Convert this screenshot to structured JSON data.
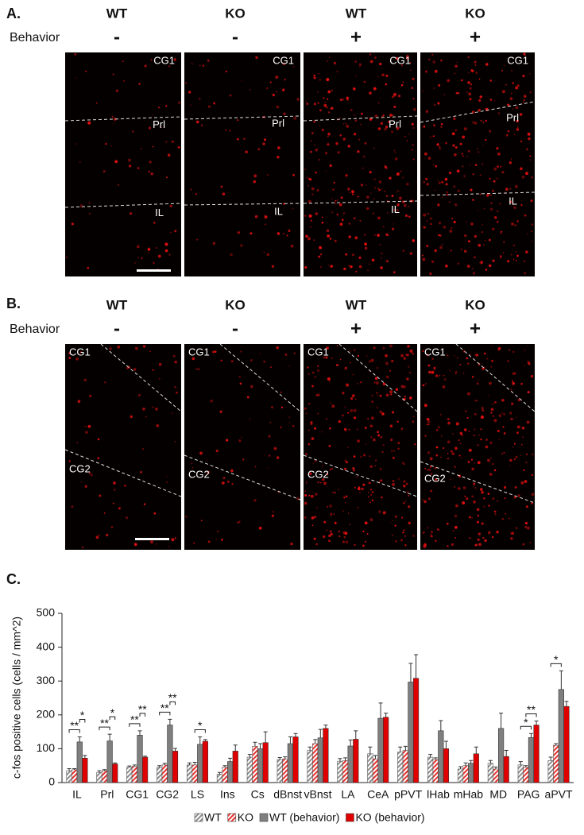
{
  "panel_a": {
    "label": "A.",
    "behavior_label": "Behavior",
    "images": [
      {
        "genotype": "WT",
        "behavior": "-",
        "regions": [
          "CG1",
          "Prl",
          "IL"
        ]
      },
      {
        "genotype": "KO",
        "behavior": "-",
        "regions": [
          "CG1",
          "Prl",
          "IL"
        ]
      },
      {
        "genotype": "WT",
        "behavior": "+",
        "regions": [
          "CG1",
          "Prl",
          "IL"
        ]
      },
      {
        "genotype": "KO",
        "behavior": "+",
        "regions": [
          "CG1",
          "Prl",
          "IL"
        ]
      }
    ]
  },
  "panel_b": {
    "label": "B.",
    "behavior_label": "Behavior",
    "images": [
      {
        "genotype": "WT",
        "behavior": "-",
        "regions": [
          "CG1",
          "CG2"
        ]
      },
      {
        "genotype": "KO",
        "behavior": "-",
        "regions": [
          "CG1",
          "CG2"
        ]
      },
      {
        "genotype": "WT",
        "behavior": "+",
        "regions": [
          "CG1",
          "CG2"
        ]
      },
      {
        "genotype": "KO",
        "behavior": "+",
        "regions": [
          "CG1",
          "CG2"
        ]
      }
    ]
  },
  "chart_data": {
    "type": "bar",
    "panel_label": "C.",
    "y_label": "c-fos positive cells (cells / mm^2)",
    "categories": [
      "IL",
      "Prl",
      "CG1",
      "CG2",
      "LS",
      "Ins",
      "Cs",
      "dBnst",
      "vBnst",
      "LA",
      "CeA",
      "pPVT",
      "lHab",
      "mHab",
      "MD",
      "PAG",
      "aPVT"
    ],
    "series": [
      {
        "name": "WT",
        "color": "#8c8c8c",
        "hatch": true,
        "values": [
          35,
          30,
          45,
          45,
          52,
          25,
          75,
          68,
          95,
          63,
          85,
          90,
          75,
          40,
          57,
          52,
          65
        ],
        "errors": [
          6,
          5,
          4,
          5,
          6,
          5,
          8,
          6,
          10,
          8,
          20,
          15,
          8,
          7,
          8,
          10,
          10
        ]
      },
      {
        "name": "KO",
        "color": "#e8322f",
        "hatch": true,
        "values": [
          38,
          35,
          48,
          52,
          52,
          45,
          107,
          70,
          115,
          65,
          70,
          95,
          68,
          50,
          40,
          45,
          110
        ],
        "errors": [
          3,
          3,
          4,
          5,
          8,
          5,
          12,
          6,
          12,
          8,
          10,
          12,
          5,
          8,
          6,
          5,
          5
        ]
      },
      {
        "name": "WT (behavior)",
        "color": "#7f7f7f",
        "hatch": false,
        "values": [
          120,
          123,
          140,
          170,
          113,
          62,
          100,
          115,
          132,
          108,
          190,
          297,
          153,
          57,
          160,
          133,
          275
        ],
        "errors": [
          15,
          20,
          13,
          17,
          22,
          10,
          15,
          20,
          25,
          18,
          45,
          55,
          30,
          8,
          45,
          12,
          55
        ]
      },
      {
        "name": "KO (behavior)",
        "color": "#e00000",
        "hatch": false,
        "values": [
          72,
          55,
          75,
          93,
          122,
          93,
          118,
          135,
          160,
          128,
          193,
          308,
          100,
          85,
          77,
          170,
          225
        ],
        "errors": [
          8,
          3,
          3,
          8,
          5,
          18,
          32,
          10,
          10,
          25,
          12,
          70,
          22,
          20,
          18,
          12,
          15
        ]
      }
    ],
    "ylim": [
      0,
      500
    ],
    "yticks": [
      0,
      100,
      200,
      300,
      400,
      500
    ],
    "annotations": [
      {
        "text": "**",
        "category": "IL",
        "between": [
          "WT",
          "WT (behavior)"
        ]
      },
      {
        "text": "*",
        "category": "IL",
        "between": [
          "WT (behavior)",
          "KO (behavior)"
        ]
      },
      {
        "text": "**",
        "category": "Prl",
        "between": [
          "WT",
          "WT (behavior)"
        ]
      },
      {
        "text": "*",
        "category": "Prl",
        "between": [
          "WT (behavior)",
          "KO (behavior)"
        ]
      },
      {
        "text": "**",
        "category": "CG1",
        "between": [
          "WT",
          "WT (behavior)"
        ]
      },
      {
        "text": "**",
        "category": "CG1",
        "between": [
          "WT (behavior)",
          "KO (behavior)"
        ]
      },
      {
        "text": "**",
        "category": "CG2",
        "between": [
          "WT",
          "WT (behavior)"
        ]
      },
      {
        "text": "**",
        "category": "CG2",
        "between": [
          "WT (behavior)",
          "KO (behavior)"
        ]
      },
      {
        "text": "*",
        "category": "LS",
        "between": [
          "KO",
          "KO (behavior)"
        ]
      },
      {
        "text": "*",
        "category": "PAG",
        "between": [
          "WT",
          "WT (behavior)"
        ]
      },
      {
        "text": "**",
        "category": "PAG",
        "between": [
          "KO",
          "KO (behavior)"
        ]
      },
      {
        "text": "*",
        "category": "aPVT",
        "between": [
          "WT",
          "WT (behavior)"
        ]
      }
    ]
  }
}
